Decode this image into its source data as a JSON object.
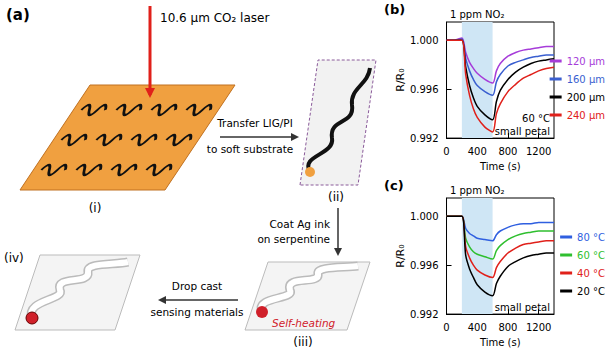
{
  "diagram": {
    "panel_label": "(a)",
    "laser_label": "10.6 μm CO₂ laser",
    "steps": [
      {
        "label": "(i)"
      },
      {
        "label": "(ii)"
      },
      {
        "label": "(iii)",
        "annotation": "Self-heating"
      },
      {
        "label": "(iv)"
      }
    ],
    "arrows": [
      {
        "text": [
          "Transfer LIG/PI",
          "to soft substrate"
        ]
      },
      {
        "text": [
          "Coat Ag ink",
          "on serpentine"
        ]
      },
      {
        "text": [
          "Drop cast",
          "sensing materials"
        ]
      }
    ]
  },
  "chart_data": [
    {
      "panel_label": "(b)",
      "type": "line",
      "x_label": "Time (s)",
      "y_label": "R/R₀",
      "x": [
        0,
        100,
        200,
        250,
        300,
        350,
        400,
        500,
        600,
        650,
        700,
        800,
        900,
        1000,
        1100,
        1200,
        1300,
        1400
      ],
      "series": [
        {
          "name": "120 μm",
          "color": "#a63cd9",
          "values": [
            1.0,
            1.0,
            1.0002,
            0.999,
            0.9982,
            0.9977,
            0.9973,
            0.9968,
            0.9965,
            0.9975,
            0.9981,
            0.9987,
            0.999,
            0.9992,
            0.9993,
            0.9994,
            0.9995,
            0.9995
          ]
        },
        {
          "name": "160 μm",
          "color": "#3a5fd0",
          "values": [
            1.0,
            1.0,
            1.0001,
            0.9985,
            0.9975,
            0.9968,
            0.9963,
            0.9958,
            0.9955,
            0.9966,
            0.9972,
            0.9979,
            0.9982,
            0.9984,
            0.9986,
            0.9987,
            0.9988,
            0.9988
          ]
        },
        {
          "name": "200 μm",
          "color": "#000000",
          "values": [
            1.0,
            1.0,
            1.0,
            0.9978,
            0.9963,
            0.9953,
            0.9946,
            0.9939,
            0.9935,
            0.995,
            0.9959,
            0.9968,
            0.9974,
            0.9978,
            0.9981,
            0.9983,
            0.9984,
            0.9985
          ]
        },
        {
          "name": "240 μm",
          "color": "#e0201a",
          "values": [
            1.0,
            1.0,
            1.0,
            0.9972,
            0.9955,
            0.9944,
            0.9937,
            0.9929,
            0.9925,
            0.994,
            0.9948,
            0.9958,
            0.9964,
            0.9969,
            0.9972,
            0.9975,
            0.9977,
            0.9978
          ]
        }
      ],
      "xlim": [
        0,
        1400
      ],
      "xticks": [
        0,
        400,
        800,
        1200
      ],
      "ylim": [
        0.992,
        1.0015
      ],
      "yticks": [
        0.992,
        0.996,
        {
          "value": 1,
          "label": "1.000"
        }
      ],
      "highlight": {
        "range": [
          200,
          600
        ],
        "label": "1 ppm NO₂",
        "color": "#cfe6f5"
      },
      "annotations": [
        "60 °C",
        "small petal"
      ],
      "legend": "right",
      "grid": false
    },
    {
      "panel_label": "(c)",
      "type": "line",
      "x_label": "Time (s)",
      "y_label": "R/R₀",
      "x": [
        0,
        100,
        200,
        250,
        300,
        350,
        400,
        500,
        600,
        650,
        700,
        800,
        900,
        1000,
        1100,
        1200,
        1300,
        1400
      ],
      "series": [
        {
          "name": "80 °C",
          "color": "#2f5fe0",
          "values": [
            1.0,
            1.0,
            1.0,
            0.999,
            0.9986,
            0.9984,
            0.9982,
            0.9981,
            0.998,
            0.9985,
            0.9988,
            0.9991,
            0.9993,
            0.9994,
            0.9994,
            0.9995,
            0.9995,
            0.9995
          ]
        },
        {
          "name": "60 °C",
          "color": "#2fbf2f",
          "values": [
            1.0,
            1.0,
            1.0,
            0.9982,
            0.9975,
            0.9971,
            0.9969,
            0.9967,
            0.9965,
            0.9972,
            0.9976,
            0.9981,
            0.9984,
            0.9986,
            0.9987,
            0.9988,
            0.9988,
            0.9988
          ]
        },
        {
          "name": "40 °C",
          "color": "#e0201a",
          "values": [
            1.0,
            1.0,
            1.0,
            0.9975,
            0.9966,
            0.996,
            0.9956,
            0.9952,
            0.995,
            0.9958,
            0.9963,
            0.997,
            0.9974,
            0.9977,
            0.9978,
            0.9979,
            0.998,
            0.998
          ]
        },
        {
          "name": "20 °C",
          "color": "#000000",
          "values": [
            1.0,
            1.0,
            1.0,
            0.9968,
            0.9957,
            0.995,
            0.9944,
            0.9938,
            0.9935,
            0.9945,
            0.9951,
            0.9959,
            0.9963,
            0.9966,
            0.9968,
            0.9969,
            0.997,
            0.997
          ]
        }
      ],
      "xlim": [
        0,
        1400
      ],
      "xticks": [
        0,
        400,
        800,
        1200
      ],
      "ylim": [
        0.992,
        1.0015
      ],
      "yticks": [
        0.992,
        0.996,
        {
          "value": 1,
          "label": "1.000"
        }
      ],
      "highlight": {
        "range": [
          200,
          600
        ],
        "label": "1 ppm NO₂",
        "color": "#cfe6f5"
      },
      "annotations": [
        "small petal"
      ],
      "legend": "right",
      "grid": false
    }
  ]
}
